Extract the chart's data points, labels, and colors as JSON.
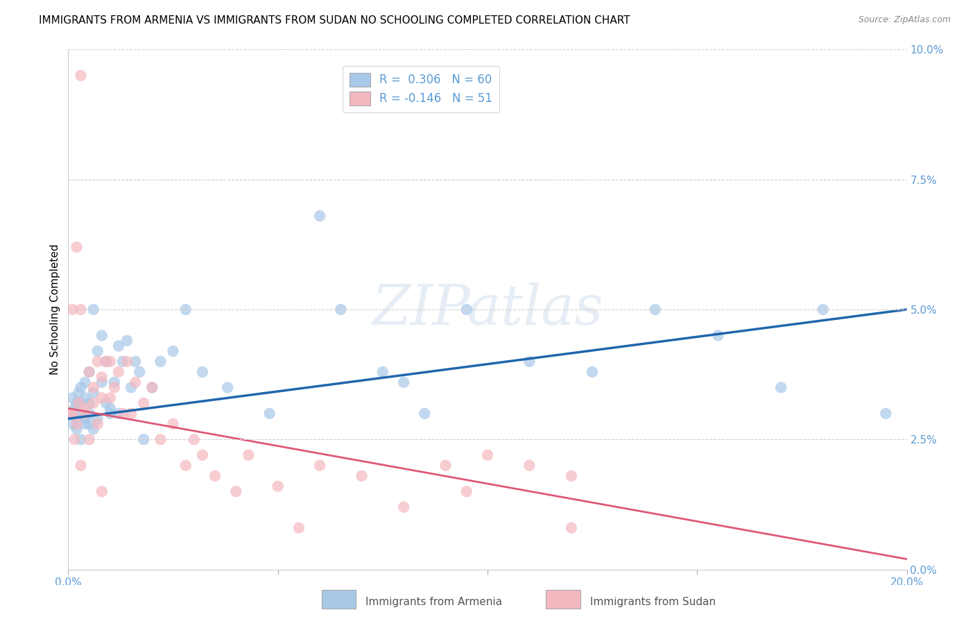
{
  "title": "IMMIGRANTS FROM ARMENIA VS IMMIGRANTS FROM SUDAN NO SCHOOLING COMPLETED CORRELATION CHART",
  "source": "Source: ZipAtlas.com",
  "ylabel": "No Schooling Completed",
  "legend_labels": [
    "Immigrants from Armenia",
    "Immigrants from Sudan"
  ],
  "armenia_color": "#a8c8e8",
  "sudan_color": "#f4b8c0",
  "armenia_line_color": "#2166ac",
  "sudan_line_color": "#e05878",
  "R_armenia": 0.306,
  "N_armenia": 60,
  "R_sudan": -0.146,
  "N_sudan": 51,
  "xlim": [
    0.0,
    0.2
  ],
  "ylim": [
    0.0,
    0.1
  ],
  "yticks": [
    0.0,
    0.025,
    0.05,
    0.075,
    0.1
  ],
  "background_color": "#ffffff",
  "grid_color": "#d0d0d0",
  "watermark_text": "ZIPatlas",
  "armenia_scatter_x": [
    0.0005,
    0.001,
    0.001,
    0.0015,
    0.002,
    0.002,
    0.002,
    0.0025,
    0.003,
    0.003,
    0.003,
    0.003,
    0.004,
    0.004,
    0.004,
    0.004,
    0.005,
    0.005,
    0.005,
    0.005,
    0.006,
    0.006,
    0.006,
    0.007,
    0.007,
    0.008,
    0.008,
    0.009,
    0.009,
    0.01,
    0.01,
    0.011,
    0.012,
    0.012,
    0.013,
    0.014,
    0.015,
    0.016,
    0.017,
    0.018,
    0.02,
    0.022,
    0.025,
    0.028,
    0.032,
    0.038,
    0.048,
    0.06,
    0.065,
    0.075,
    0.08,
    0.085,
    0.095,
    0.11,
    0.125,
    0.14,
    0.155,
    0.17,
    0.18,
    0.195
  ],
  "armenia_scatter_y": [
    0.03,
    0.028,
    0.033,
    0.031,
    0.027,
    0.032,
    0.029,
    0.034,
    0.03,
    0.025,
    0.032,
    0.035,
    0.029,
    0.033,
    0.028,
    0.036,
    0.03,
    0.032,
    0.028,
    0.038,
    0.05,
    0.034,
    0.027,
    0.042,
    0.029,
    0.036,
    0.045,
    0.04,
    0.032,
    0.031,
    0.03,
    0.036,
    0.03,
    0.043,
    0.04,
    0.044,
    0.035,
    0.04,
    0.038,
    0.025,
    0.035,
    0.04,
    0.042,
    0.05,
    0.038,
    0.035,
    0.03,
    0.068,
    0.05,
    0.038,
    0.036,
    0.03,
    0.05,
    0.04,
    0.038,
    0.05,
    0.045,
    0.035,
    0.05,
    0.03
  ],
  "sudan_scatter_x": [
    0.0005,
    0.001,
    0.001,
    0.0015,
    0.002,
    0.002,
    0.0025,
    0.003,
    0.003,
    0.004,
    0.004,
    0.005,
    0.005,
    0.006,
    0.006,
    0.007,
    0.007,
    0.008,
    0.008,
    0.009,
    0.01,
    0.01,
    0.011,
    0.012,
    0.013,
    0.014,
    0.015,
    0.016,
    0.018,
    0.02,
    0.022,
    0.025,
    0.028,
    0.03,
    0.032,
    0.035,
    0.04,
    0.043,
    0.05,
    0.06,
    0.07,
    0.08,
    0.09,
    0.1,
    0.11,
    0.12,
    0.095,
    0.003,
    0.008,
    0.055,
    0.12
  ],
  "sudan_scatter_y": [
    0.03,
    0.05,
    0.03,
    0.025,
    0.062,
    0.028,
    0.032,
    0.02,
    0.05,
    0.031,
    0.03,
    0.025,
    0.038,
    0.032,
    0.035,
    0.028,
    0.04,
    0.033,
    0.037,
    0.04,
    0.04,
    0.033,
    0.035,
    0.038,
    0.03,
    0.04,
    0.03,
    0.036,
    0.032,
    0.035,
    0.025,
    0.028,
    0.02,
    0.025,
    0.022,
    0.018,
    0.015,
    0.022,
    0.016,
    0.02,
    0.018,
    0.012,
    0.02,
    0.022,
    0.02,
    0.018,
    0.015,
    0.095,
    0.015,
    0.008,
    0.008
  ],
  "armenia_line_x": [
    0.0,
    0.2
  ],
  "armenia_line_y": [
    0.029,
    0.05
  ],
  "sudan_line_x": [
    0.0,
    0.2
  ],
  "sudan_line_y": [
    0.031,
    0.002
  ],
  "title_fontsize": 11,
  "axis_label_fontsize": 11,
  "tick_fontsize": 11,
  "legend_fontsize": 12,
  "right_axis_color": "#5b9bd5",
  "tick_label_color": "#5b9bd5"
}
